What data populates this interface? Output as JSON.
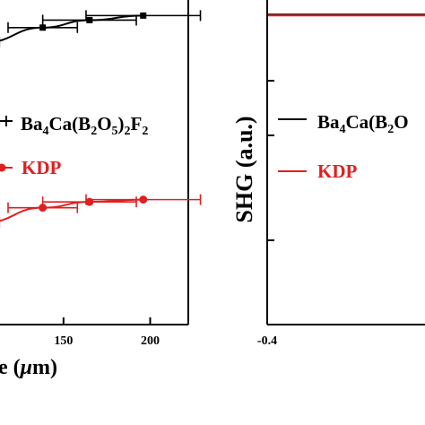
{
  "chart_data": [
    {
      "type": "line",
      "panel": "left",
      "xlabel": "e (μm)",
      "xlabel_pre": "e (",
      "xlabel_mu": "μ",
      "xlabel_post": "m)",
      "x_ticks": [
        150,
        200
      ],
      "xlim": [
        103,
        222
      ],
      "ylim": [
        0,
        1
      ],
      "grid": false,
      "legend_position": "middle",
      "series": [
        {
          "name": "Ba4Ca(B2O5)2F2",
          "color": "#000000",
          "marker": "square",
          "points": [
            {
              "x": 105,
              "y": 0.87,
              "xerr": 8
            },
            {
              "x": 138,
              "y": 0.915,
              "xerr": 20
            },
            {
              "x": 165,
              "y": 0.938,
              "xerr": 27
            },
            {
              "x": 196,
              "y": 0.952,
              "xerr": 33
            }
          ]
        },
        {
          "name": "KDP",
          "color": "#e02020",
          "marker": "circle",
          "points": [
            {
              "x": 105,
              "y": 0.315,
              "xerr": 8
            },
            {
              "x": 138,
              "y": 0.36,
              "xerr": 20
            },
            {
              "x": 165,
              "y": 0.378,
              "xerr": 27
            },
            {
              "x": 196,
              "y": 0.385,
              "xerr": 33
            }
          ]
        }
      ]
    },
    {
      "type": "line",
      "panel": "right",
      "ylabel": "SHG (a.u.)",
      "x_ticks": [
        -0.4
      ],
      "grid": false,
      "legend_position": "middle",
      "series": [
        {
          "name": "Ba4Ca(B2O5)2F2",
          "color": "#000000",
          "level": 0.955
        },
        {
          "name": "KDP",
          "color": "#e02020",
          "level": 0.955
        }
      ]
    }
  ],
  "legend_left": {
    "ba": {
      "p1": "Ba",
      "s1": "4",
      "p2": "Ca(B",
      "s2": "2",
      "p3": "O",
      "s3": "5",
      "p4": ")",
      "s4": "2",
      "p5": "F",
      "s5": "2"
    },
    "kdp": "KDP"
  },
  "legend_right": {
    "ba": {
      "p1": "Ba",
      "s1": "4",
      "p2": "Ca(B",
      "s2": "2",
      "p3": "O"
    },
    "kdp": "KDP"
  },
  "colors": {
    "black": "#000000",
    "red": "#e02020"
  }
}
